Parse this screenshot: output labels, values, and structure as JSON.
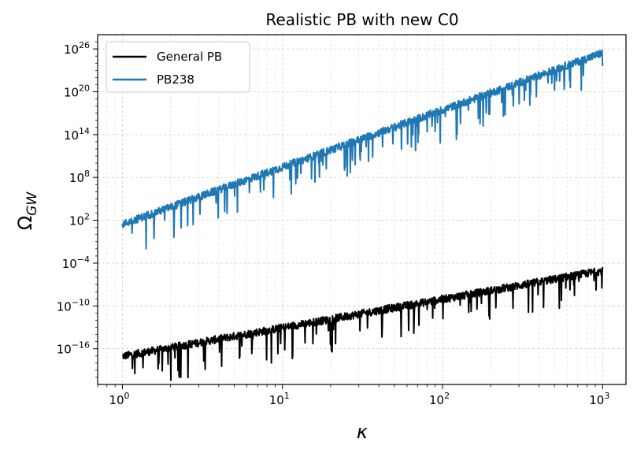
{
  "chart_data": {
    "type": "line",
    "title": "Realistic PB with new C0",
    "xlabel": "κ",
    "ylabel_main": "Ω",
    "ylabel_sub": "GW",
    "xscale": "log",
    "yscale": "log",
    "xlim": [
      0.7,
      1400
    ],
    "ylim_exp": [
      -21,
      28
    ],
    "grid": true,
    "legend_position": "upper-left",
    "x_ticks": [
      {
        "base": "10",
        "exp": "0",
        "value": 1
      },
      {
        "base": "10",
        "exp": "1",
        "value": 10
      },
      {
        "base": "10",
        "exp": "2",
        "value": 100
      },
      {
        "base": "10",
        "exp": "3",
        "value": 1000
      }
    ],
    "y_ticks": [
      {
        "base": "10",
        "exp": "26",
        "value_exp": 26
      },
      {
        "base": "10",
        "exp": "20",
        "value_exp": 20
      },
      {
        "base": "10",
        "exp": "14",
        "value_exp": 14
      },
      {
        "base": "10",
        "exp": "8",
        "value_exp": 8
      },
      {
        "base": "10",
        "exp": "2",
        "value_exp": 2
      },
      {
        "base": "10",
        "exp": "−4",
        "value_exp": -4
      },
      {
        "base": "10",
        "exp": "−10",
        "value_exp": -10
      },
      {
        "base": "10",
        "exp": "−16",
        "value_exp": -16
      }
    ],
    "series": [
      {
        "name": "General PB",
        "color": "#000000",
        "x": [
          1,
          2,
          5,
          10,
          20,
          50,
          100,
          200,
          500,
          1000
        ],
        "y_exp": [
          -17.0,
          -15.8,
          -14.2,
          -13.0,
          -11.8,
          -10.2,
          -9.0,
          -7.8,
          -6.2,
          -5.0
        ]
      },
      {
        "name": "PB238",
        "color": "#1f77b4",
        "x": [
          1,
          2,
          5,
          10,
          20,
          50,
          100,
          200,
          500,
          1000
        ],
        "y_exp": [
          1.5,
          3.9,
          7.1,
          9.5,
          11.9,
          15.1,
          17.5,
          19.9,
          23.1,
          25.5
        ]
      }
    ]
  }
}
